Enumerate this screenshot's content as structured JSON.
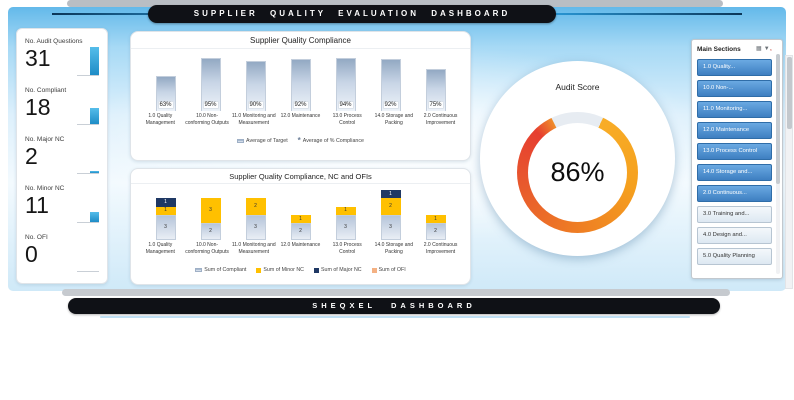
{
  "header": {
    "title": "SUPPLIER QUALITY EVALUATION DASHBOARD"
  },
  "footer": {
    "title": "SHEQXEL DASHBOARD"
  },
  "kpis": [
    {
      "label": "No. Audit Questions",
      "value": 31
    },
    {
      "label": "No. Compliant",
      "value": 18
    },
    {
      "label": "No. Major NC",
      "value": 2
    },
    {
      "label": "No. Minor NC",
      "value": 11
    },
    {
      "label": "No. OFI",
      "value": 0
    }
  ],
  "gauge": {
    "title": "Audit Score",
    "value": "86%",
    "percent": 86,
    "ring_colors": [
      "#f5a01e",
      "#e63e30"
    ],
    "empty_color": "#e7ecf2"
  },
  "slicer": {
    "title": "Main Sections",
    "items": [
      {
        "label": "1.0 Quality...",
        "selected": true
      },
      {
        "label": "10.0 Non-...",
        "selected": true
      },
      {
        "label": "11.0 Monitoring...",
        "selected": true
      },
      {
        "label": "12.0 Maintenance",
        "selected": true
      },
      {
        "label": "13.0 Process Control",
        "selected": true
      },
      {
        "label": "14.0 Storage and...",
        "selected": true
      },
      {
        "label": "2.0 Continuous...",
        "selected": true
      },
      {
        "label": "3.0 Training and...",
        "selected": false
      },
      {
        "label": "4.0 Design and...",
        "selected": false
      },
      {
        "label": "5.0 Quality Planning",
        "selected": false
      }
    ]
  },
  "chart_data": [
    {
      "type": "bar",
      "title": "Supplier Quality Compliance",
      "categories": [
        "1.0 Quality Management",
        "10.0 Non-conforming Outputs",
        "11.0 Monitoring and Measurement",
        "12.0 Maintenance",
        "13.0 Process Control",
        "14.0 Storage and Packing",
        "2.0 Continuous Improvement"
      ],
      "series": [
        {
          "name": "Average of Target",
          "values": [
            100,
            100,
            100,
            100,
            100,
            100,
            100
          ]
        },
        {
          "name": "Average of % Compliance",
          "values": [
            63,
            95,
            90,
            92,
            94,
            92,
            75
          ]
        }
      ],
      "labels": [
        "63%",
        "95%",
        "90%",
        "92%",
        "94%",
        "92%",
        "75%"
      ],
      "ylim": [
        0,
        100
      ],
      "legend_position": "bottom",
      "grid": false
    },
    {
      "type": "stacked_bar",
      "title": "Supplier Quality Compliance, NC and OFIs",
      "categories": [
        "1.0 Quality Management",
        "10.0 Non-conforming Outputs",
        "11.0 Monitoring and Measurement",
        "12.0 Maintenance",
        "13.0 Process Control",
        "14.0 Storage and Packing",
        "2.0 Continuous Improvement"
      ],
      "series": [
        {
          "name": "Sum of Compliant",
          "color": "#c9d6e8",
          "values": [
            3,
            2,
            3,
            2,
            3,
            3,
            2
          ]
        },
        {
          "name": "Sum of Minor NC",
          "color": "#ffc000",
          "values": [
            1,
            3,
            2,
            1,
            1,
            2,
            1
          ]
        },
        {
          "name": "Sum of Major NC",
          "color": "#1f3864",
          "values": [
            1,
            0,
            0,
            0,
            0,
            1,
            0
          ]
        },
        {
          "name": "Sum of OFI",
          "color": "#f4b183",
          "values": [
            0,
            0,
            0,
            0,
            0,
            0,
            0
          ]
        }
      ],
      "ylim": [
        0,
        6
      ],
      "legend_position": "bottom",
      "grid": false
    }
  ]
}
